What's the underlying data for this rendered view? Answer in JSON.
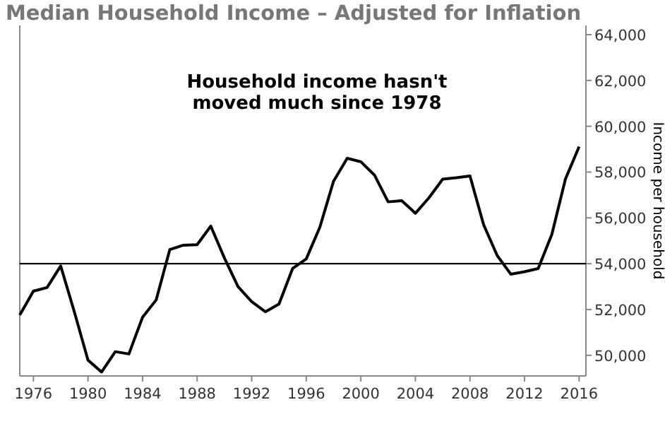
{
  "chart_data": {
    "type": "line",
    "title": "Median Household Income – Adjusted for Inflation",
    "ylabel": "Income per household",
    "annotations": [
      "Household income hasn't\nmoved much since 1978"
    ],
    "x": [
      1975,
      1976,
      1977,
      1978,
      1979,
      1980,
      1981,
      1982,
      1983,
      1984,
      1985,
      1986,
      1987,
      1988,
      1989,
      1990,
      1991,
      1992,
      1993,
      1994,
      1995,
      1996,
      1997,
      1998,
      1999,
      2000,
      2001,
      2002,
      2003,
      2004,
      2005,
      2006,
      2007,
      2008,
      2009,
      2010,
      2011,
      2012,
      2013,
      2014,
      2015,
      2016
    ],
    "series": [
      {
        "color": "#000000",
        "values": [
          51760,
          52800,
          52960,
          53900,
          51900,
          49790,
          49270,
          50160,
          50060,
          51660,
          52420,
          54620,
          54810,
          54830,
          55640,
          54250,
          53000,
          52340,
          51900,
          52240,
          53790,
          54210,
          55600,
          57600,
          58600,
          58450,
          57870,
          56700,
          56750,
          56200,
          56880,
          57690,
          57750,
          57830,
          55700,
          54350,
          53540,
          53650,
          53790,
          55280,
          57700,
          59110
        ]
      }
    ],
    "xlim": [
      1975,
      2016.5
    ],
    "xticks": [
      1976,
      1980,
      1984,
      1988,
      1992,
      1996,
      2000,
      2004,
      2008,
      2012,
      2016
    ],
    "ylim": [
      49100,
      64400
    ],
    "yticks": [
      {
        "value": 50000,
        "label": "50,000"
      },
      {
        "value": 52000,
        "label": "52,000"
      },
      {
        "value": 54000,
        "label": "54,000"
      },
      {
        "value": 56000,
        "label": "56,000"
      },
      {
        "value": 58000,
        "label": "58,000"
      },
      {
        "value": 60000,
        "label": "60,000"
      },
      {
        "value": 62000,
        "label": "62,000"
      },
      {
        "value": 64000,
        "label": "64,000"
      }
    ],
    "ref_lines": [
      {
        "axis": "y",
        "value": 54000,
        "color": "#000000"
      }
    ],
    "grid": false,
    "marker": "none",
    "line_style": "solid"
  }
}
